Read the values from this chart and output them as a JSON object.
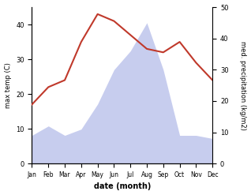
{
  "months": [
    "Jan",
    "Feb",
    "Mar",
    "Apr",
    "May",
    "Jun",
    "Jul",
    "Aug",
    "Sep",
    "Oct",
    "Nov",
    "Dec"
  ],
  "temperature": [
    17,
    22,
    24,
    35,
    43,
    41,
    37,
    33,
    32,
    35,
    29,
    24
  ],
  "precipitation": [
    9,
    12,
    9,
    11,
    19,
    30,
    36,
    45,
    30,
    9,
    9,
    8
  ],
  "temp_color": "#c0392b",
  "precip_color": "#b0b8e8",
  "ylabel_left": "max temp (C)",
  "ylabel_right": "med. precipitation (kg/m2)",
  "xlabel": "date (month)",
  "ylim_left": [
    0,
    45
  ],
  "ylim_right": [
    0,
    50
  ],
  "yticks_left": [
    0,
    10,
    20,
    30,
    40
  ],
  "yticks_right": [
    0,
    10,
    20,
    30,
    40,
    50
  ],
  "background_color": "#ffffff"
}
